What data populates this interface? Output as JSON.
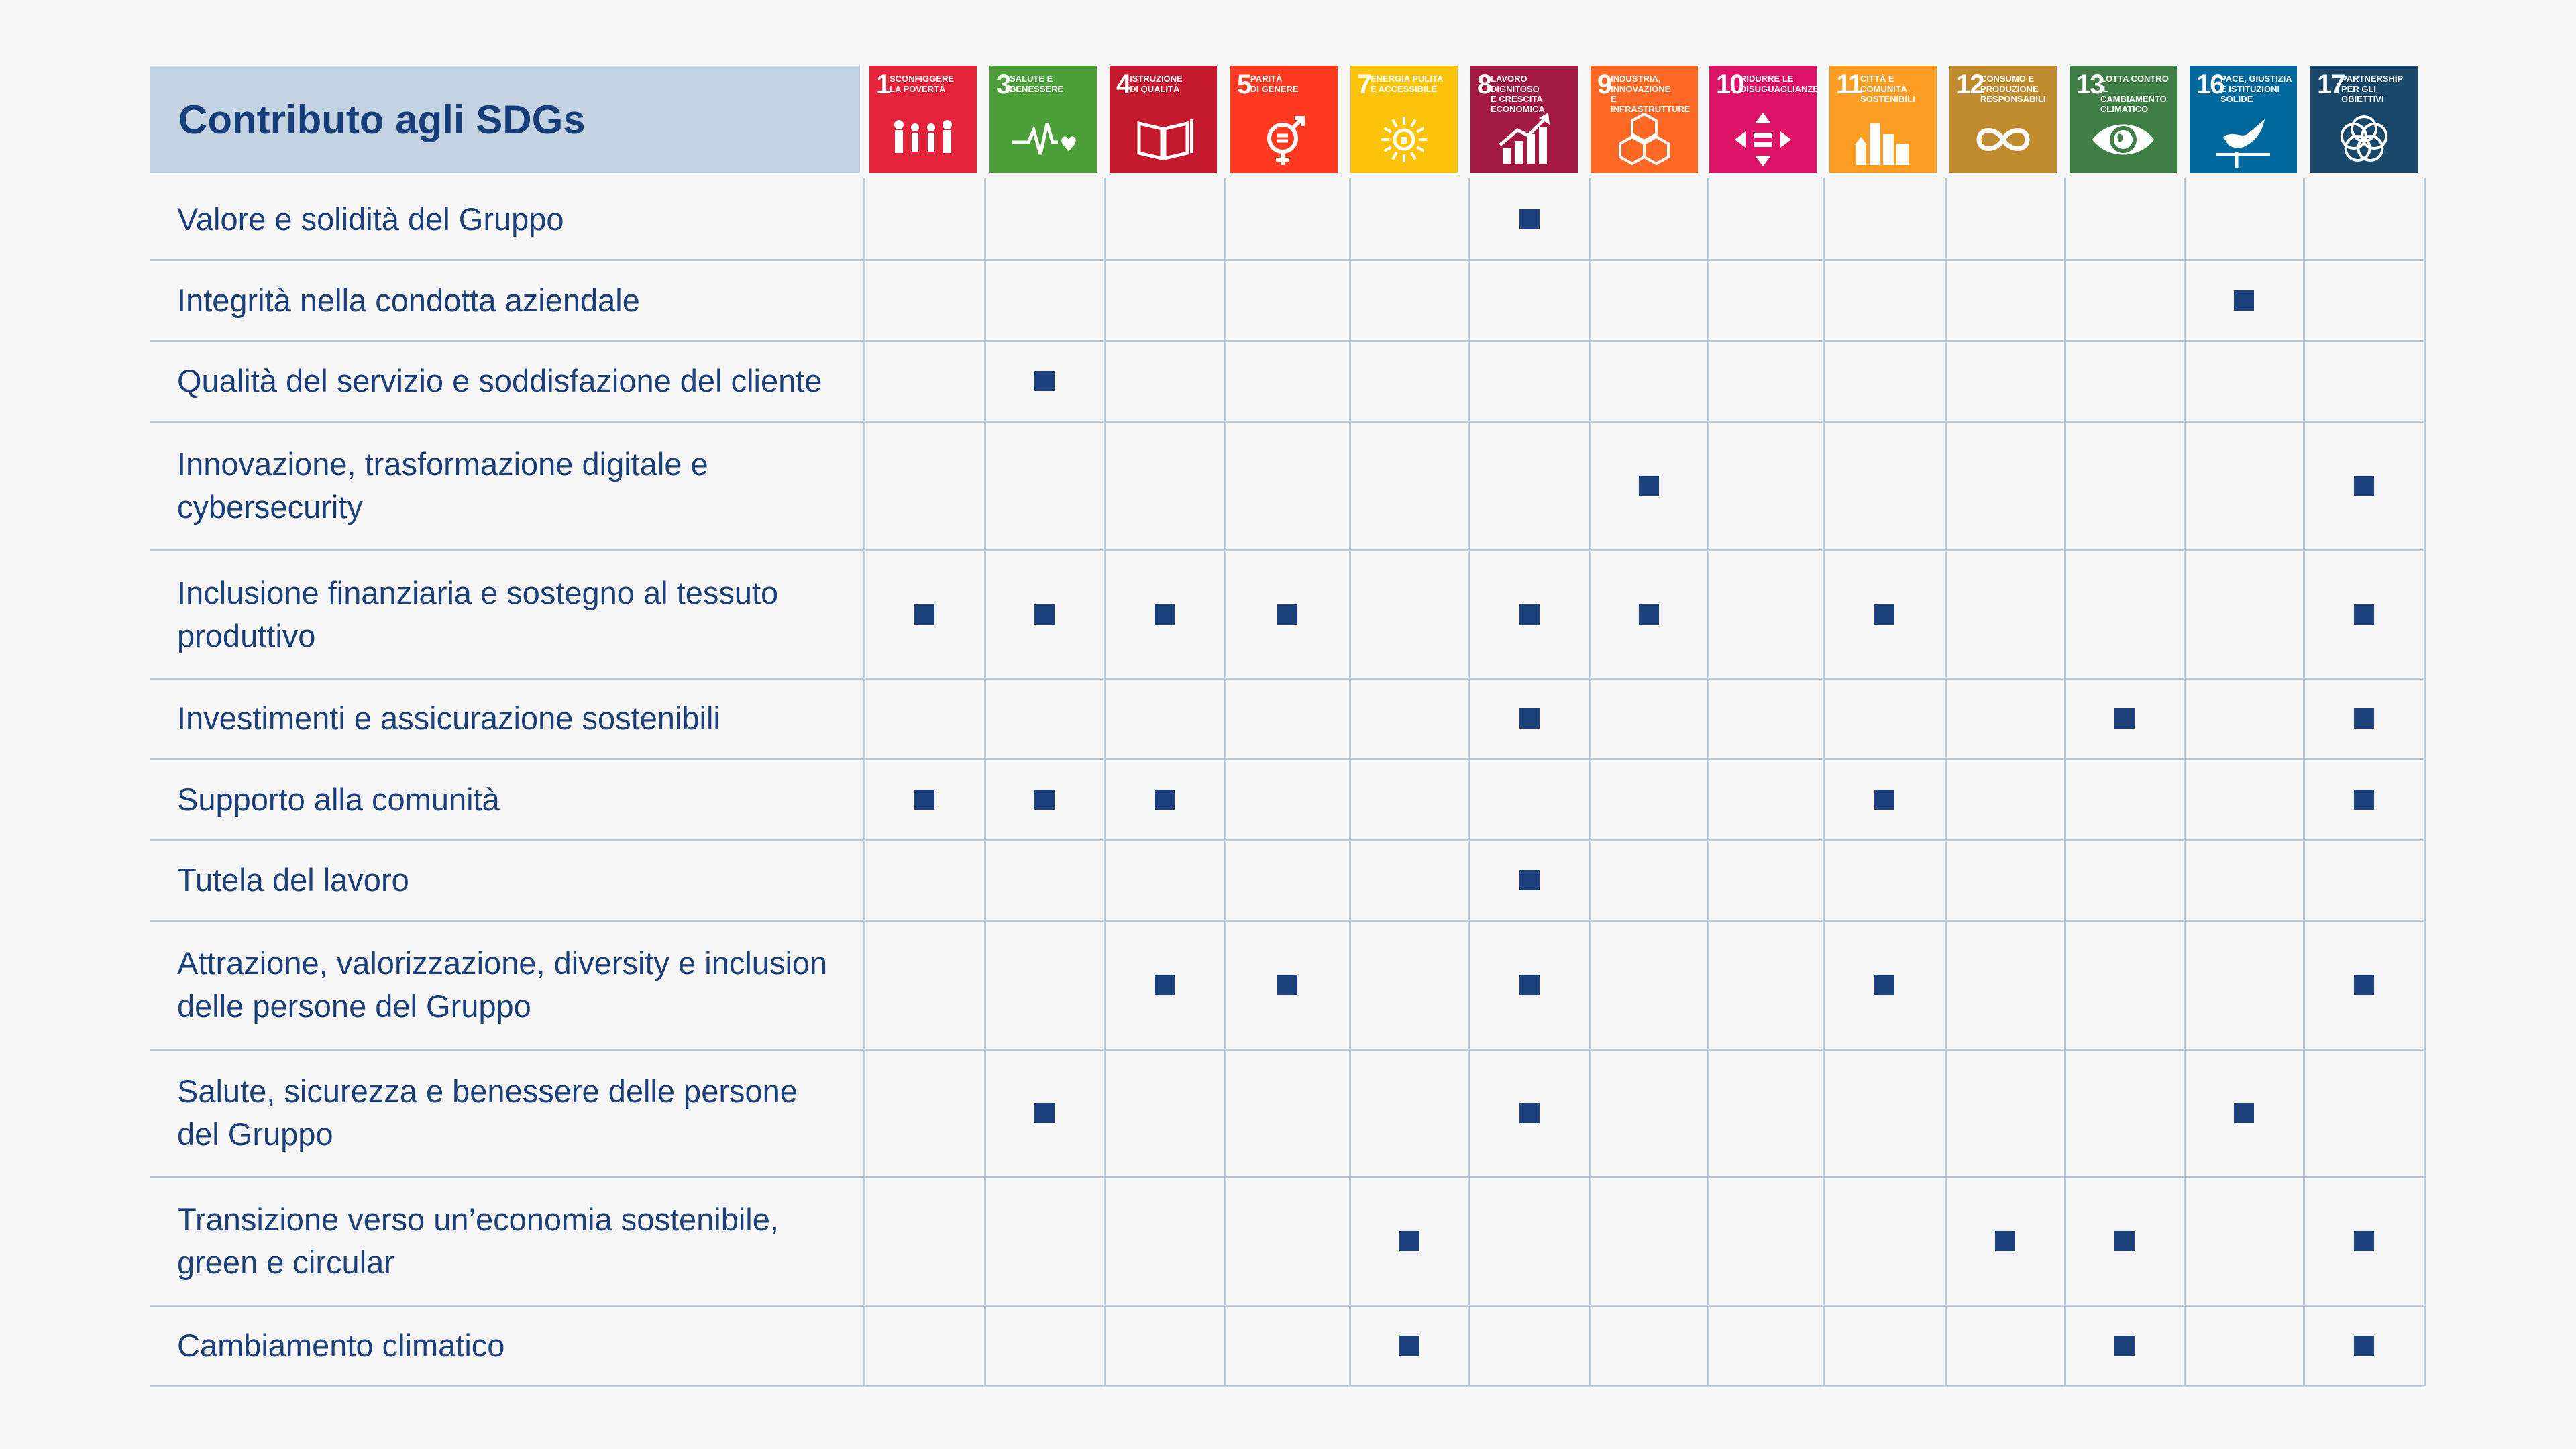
{
  "header": {
    "title": "Contributo agli SDGs"
  },
  "sdgs": [
    {
      "num": "1",
      "title": "SCONFIGGERE\nLA POVERTÀ",
      "color": "#e5243b",
      "icon": "people-icon"
    },
    {
      "num": "3",
      "title": "SALUTE E\nBENESSERE",
      "color": "#4c9f38",
      "icon": "heartbeat-icon"
    },
    {
      "num": "4",
      "title": "ISTRUZIONE\nDI QUALITÀ",
      "color": "#c5192d",
      "icon": "book-icon"
    },
    {
      "num": "5",
      "title": "PARITÀ\nDI GENERE",
      "color": "#ff3a21",
      "icon": "gender-icon"
    },
    {
      "num": "7",
      "title": "ENERGIA PULITA\nE ACCESSIBILE",
      "color": "#fcc30b",
      "icon": "sun-icon"
    },
    {
      "num": "8",
      "title": "LAVORO DIGNITOSO\nE CRESCITA\nECONOMICA",
      "color": "#a21942",
      "icon": "growth-chart-icon"
    },
    {
      "num": "9",
      "title": "INDUSTRIA,\nINNOVAZIONE\nE INFRASTRUTTURE",
      "color": "#fd6925",
      "icon": "cubes-icon"
    },
    {
      "num": "10",
      "title": "RIDURRE LE\nDISUGUAGLIANZE",
      "color": "#dd1367",
      "icon": "equality-icon"
    },
    {
      "num": "11",
      "title": "CITTÀ E COMUNITÀ\nSOSTENIBILI",
      "color": "#fd9d24",
      "icon": "city-icon"
    },
    {
      "num": "12",
      "title": "CONSUMO E\nPRODUZIONE\nRESPONSABILI",
      "color": "#bf8b2e",
      "icon": "infinity-icon"
    },
    {
      "num": "13",
      "title": "LOTTA CONTRO\nIL CAMBIAMENTO\nCLIMATICO",
      "color": "#3f7e44",
      "icon": "eye-globe-icon"
    },
    {
      "num": "16",
      "title": "PACE, GIUSTIZIA\nE ISTITUZIONI\nSOLIDE",
      "color": "#00689d",
      "icon": "dove-icon"
    },
    {
      "num": "17",
      "title": "PARTNERSHIP\nPER GLI OBIETTIVI",
      "color": "#19486a",
      "icon": "rings-icon"
    }
  ],
  "rows": [
    {
      "label": "Valore e solidità del Gruppo",
      "marks": [
        0,
        0,
        0,
        0,
        0,
        1,
        0,
        0,
        0,
        0,
        0,
        0,
        0
      ]
    },
    {
      "label": "Integrità nella condotta aziendale",
      "marks": [
        0,
        0,
        0,
        0,
        0,
        0,
        0,
        0,
        0,
        0,
        0,
        1,
        0
      ]
    },
    {
      "label": "Qualità del servizio e soddisfazione del cliente",
      "marks": [
        0,
        1,
        0,
        0,
        0,
        0,
        0,
        0,
        0,
        0,
        0,
        0,
        0
      ]
    },
    {
      "label": "Innovazione, trasformazione digitale e cybersecurity",
      "marks": [
        0,
        0,
        0,
        0,
        0,
        0,
        1,
        0,
        0,
        0,
        0,
        0,
        1
      ]
    },
    {
      "label": "Inclusione finanziaria e sostegno al tessuto produttivo",
      "marks": [
        1,
        1,
        1,
        1,
        0,
        1,
        1,
        0,
        1,
        0,
        0,
        0,
        1
      ]
    },
    {
      "label": "Investimenti e assicurazione sostenibili",
      "marks": [
        0,
        0,
        0,
        0,
        0,
        1,
        0,
        0,
        0,
        0,
        1,
        0,
        1
      ]
    },
    {
      "label": "Supporto alla comunità",
      "marks": [
        1,
        1,
        1,
        0,
        0,
        0,
        0,
        0,
        1,
        0,
        0,
        0,
        1
      ]
    },
    {
      "label": "Tutela del lavoro",
      "marks": [
        0,
        0,
        0,
        0,
        0,
        1,
        0,
        0,
        0,
        0,
        0,
        0,
        0
      ]
    },
    {
      "label": "Attrazione, valorizzazione, diversity e inclusion delle persone del Gruppo",
      "marks": [
        0,
        0,
        1,
        1,
        0,
        1,
        0,
        0,
        1,
        0,
        0,
        0,
        1
      ]
    },
    {
      "label": "Salute, sicurezza e benessere delle persone del Gruppo",
      "marks": [
        0,
        1,
        0,
        0,
        0,
        1,
        0,
        0,
        0,
        0,
        0,
        1,
        0
      ]
    },
    {
      "label": "Transizione verso un’economia sostenibile, green e circular",
      "marks": [
        0,
        0,
        0,
        0,
        1,
        0,
        0,
        0,
        0,
        1,
        1,
        0,
        1
      ]
    },
    {
      "label": "Cambiamento climatico",
      "marks": [
        0,
        0,
        0,
        0,
        1,
        0,
        0,
        0,
        0,
        0,
        1,
        0,
        1
      ]
    }
  ],
  "mark_color": "#1b3f7a",
  "grid_color": "#b9c9d9"
}
